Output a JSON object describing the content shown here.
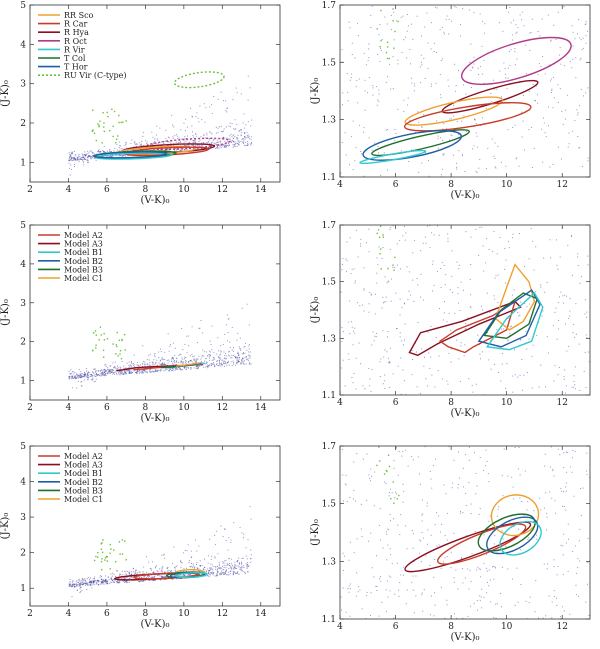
{
  "chart_data": [
    {
      "panel": "top-left",
      "type": "scatter",
      "xlim": [
        2,
        15
      ],
      "ylim": [
        0.5,
        5
      ],
      "xticks": [
        2,
        4,
        6,
        8,
        10,
        12,
        14
      ],
      "yticks": [
        1,
        2,
        3,
        4,
        5
      ],
      "xlabel": "(V-K)₀",
      "ylabel": "(J-K)₀",
      "legend": {
        "placement": "top-left",
        "entries": [
          {
            "label": "RR Sco",
            "color": "#f0a030",
            "dash": false
          },
          {
            "label": "R Car",
            "color": "#c83c2a",
            "dash": false
          },
          {
            "label": "R Hya",
            "color": "#8a0f1f",
            "dash": false
          },
          {
            "label": "R Oct",
            "color": "#b33a8a",
            "dash": false
          },
          {
            "label": "R Vir",
            "color": "#33c7cf",
            "dash": false
          },
          {
            "label": "T Col",
            "color": "#1f6f2f",
            "dash": false
          },
          {
            "label": "T Hor",
            "color": "#1f5fa8",
            "dash": false
          },
          {
            "label": "RU Vir (C-type)",
            "color": "#6ec13a",
            "dash": true
          }
        ]
      },
      "ellipses": [
        {
          "name": "RU Vir",
          "cx": 10.8,
          "cy": 3.1,
          "rx": 1.3,
          "ry": 0.18,
          "angle": 8,
          "color": "#6ec13a",
          "dash": true
        },
        {
          "name": "R Oct",
          "cx": 10.2,
          "cy": 1.47,
          "rx": 2.2,
          "ry": 0.12,
          "angle": 4,
          "color": "#b33a8a",
          "dash": true
        },
        {
          "name": "R Hya",
          "cx": 9.2,
          "cy": 1.35,
          "rx": 2.4,
          "ry": 0.1,
          "angle": 3,
          "color": "#8a0f1f",
          "dash": false
        },
        {
          "name": "RR Sco",
          "cx": 8.6,
          "cy": 1.3,
          "rx": 2.0,
          "ry": 0.09,
          "angle": 3,
          "color": "#f0a030",
          "dash": false
        },
        {
          "name": "R Car",
          "cx": 9.1,
          "cy": 1.28,
          "rx": 2.2,
          "ry": 0.09,
          "angle": 3,
          "color": "#c83c2a",
          "dash": false
        },
        {
          "name": "T Col",
          "cx": 7.5,
          "cy": 1.2,
          "rx": 2.1,
          "ry": 0.08,
          "angle": 2,
          "color": "#1f6f2f",
          "dash": false
        },
        {
          "name": "R Vir",
          "cx": 7.4,
          "cy": 1.16,
          "rx": 2.0,
          "ry": 0.07,
          "angle": 2,
          "color": "#33c7cf",
          "dash": false
        },
        {
          "name": "T Hor",
          "cx": 7.2,
          "cy": 1.19,
          "rx": 1.9,
          "ry": 0.07,
          "angle": 2,
          "color": "#1f5fa8",
          "dash": false
        }
      ]
    },
    {
      "panel": "top-right",
      "type": "scatter",
      "xlim": [
        4,
        13
      ],
      "ylim": [
        1.1,
        1.7
      ],
      "xticks": [
        4,
        6,
        8,
        10,
        12
      ],
      "yticks": [
        1.1,
        1.3,
        1.5,
        1.7
      ],
      "xlabel": "(V-K)₀",
      "ylabel": "(J-K)₀",
      "ellipses": [
        {
          "name": "R Oct",
          "cx": 10.35,
          "cy": 1.505,
          "rx": 2.05,
          "ry": 0.06,
          "angle": 17,
          "color": "#b33a8a",
          "dash": false
        },
        {
          "name": "R Hya",
          "cx": 9.4,
          "cy": 1.38,
          "rx": 1.8,
          "ry": 0.025,
          "angle": 17,
          "color": "#8a0f1f",
          "dash": false
        },
        {
          "name": "RR Sco",
          "cx": 8.1,
          "cy": 1.33,
          "rx": 1.8,
          "ry": 0.03,
          "angle": 13,
          "color": "#f0a030",
          "dash": false
        },
        {
          "name": "R Car",
          "cx": 8.6,
          "cy": 1.31,
          "rx": 2.3,
          "ry": 0.035,
          "angle": 9,
          "color": "#c83c2a",
          "dash": false
        },
        {
          "name": "T Col",
          "cx": 6.9,
          "cy": 1.22,
          "rx": 1.8,
          "ry": 0.022,
          "angle": 13,
          "color": "#1f6f2f",
          "dash": false
        },
        {
          "name": "T Hor",
          "cx": 6.6,
          "cy": 1.21,
          "rx": 1.8,
          "ry": 0.04,
          "angle": 11,
          "color": "#1f5fa8",
          "dash": false
        },
        {
          "name": "R Vir",
          "cx": 5.9,
          "cy": 1.17,
          "rx": 1.2,
          "ry": 0.01,
          "angle": 10,
          "color": "#33c7cf",
          "dash": false
        }
      ]
    },
    {
      "panel": "middle-left",
      "type": "scatter",
      "xlim": [
        2,
        15
      ],
      "ylim": [
        0.5,
        5
      ],
      "xticks": [
        2,
        4,
        6,
        8,
        10,
        12,
        14
      ],
      "yticks": [
        1,
        2,
        3,
        4,
        5
      ],
      "xlabel": "(V-K)₀",
      "ylabel": "(J-K)₀",
      "legend": {
        "placement": "top-left",
        "entries": [
          {
            "label": "Model A2",
            "color": "#c83c2a",
            "dash": false
          },
          {
            "label": "Model A3",
            "color": "#8a0f1f",
            "dash": false
          },
          {
            "label": "Model B1",
            "color": "#33c7cf",
            "dash": false
          },
          {
            "label": "Model B2",
            "color": "#1f5fa8",
            "dash": false
          },
          {
            "label": "Model B3",
            "color": "#1f6f2f",
            "dash": false
          },
          {
            "label": "Model C1",
            "color": "#f0a030",
            "dash": false
          }
        ]
      },
      "polylines": [
        {
          "name": "Model A3",
          "color": "#8a0f1f",
          "points": [
            [
              6.5,
              1.25
            ],
            [
              7.5,
              1.33
            ],
            [
              8.5,
              1.36
            ],
            [
              9.5,
              1.38
            ],
            [
              10.5,
              1.4
            ],
            [
              11,
              1.42
            ]
          ]
        },
        {
          "name": "Model A2",
          "color": "#c83c2a",
          "points": [
            [
              7.4,
              1.28
            ],
            [
              8.6,
              1.33
            ],
            [
              9.6,
              1.37
            ],
            [
              10.6,
              1.41
            ]
          ]
        },
        {
          "name": "Model B1",
          "color": "#33c7cf",
          "points": [
            [
              9.0,
              1.32
            ],
            [
              10.0,
              1.38
            ],
            [
              10.8,
              1.42
            ],
            [
              11.1,
              1.45
            ]
          ]
        },
        {
          "name": "Model B2",
          "color": "#1f5fa8",
          "points": [
            [
              9.2,
              1.34
            ],
            [
              10.2,
              1.39
            ],
            [
              10.9,
              1.44
            ]
          ]
        },
        {
          "name": "Model B3",
          "color": "#1f6f2f",
          "points": [
            [
              8.8,
              1.33
            ],
            [
              9.8,
              1.37
            ],
            [
              10.7,
              1.43
            ]
          ]
        },
        {
          "name": "Model C1",
          "color": "#f0a030",
          "points": [
            [
              9.6,
              1.37
            ],
            [
              10.4,
              1.42
            ],
            [
              10.9,
              1.46
            ]
          ]
        }
      ]
    },
    {
      "panel": "middle-right",
      "type": "scatter",
      "xlim": [
        4,
        13
      ],
      "ylim": [
        1.1,
        1.7
      ],
      "xticks": [
        4,
        6,
        8,
        10,
        12
      ],
      "yticks": [
        1.1,
        1.3,
        1.5,
        1.7
      ],
      "xlabel": "(V-K)₀",
      "ylabel": "(J-K)₀",
      "polylines": [
        {
          "name": "Model A3",
          "color": "#8a0f1f",
          "closed": true,
          "points": [
            [
              6.5,
              1.25
            ],
            [
              6.9,
              1.32
            ],
            [
              8.4,
              1.36
            ],
            [
              10.3,
              1.43
            ],
            [
              10.5,
              1.41
            ],
            [
              9.0,
              1.35
            ],
            [
              7.5,
              1.28
            ],
            [
              6.8,
              1.24
            ]
          ]
        },
        {
          "name": "Model A2",
          "color": "#c83c2a",
          "closed": true,
          "points": [
            [
              7.6,
              1.29
            ],
            [
              8.2,
              1.33
            ],
            [
              9.5,
              1.38
            ],
            [
              10.3,
              1.43
            ],
            [
              10.0,
              1.33
            ],
            [
              8.8,
              1.27
            ],
            [
              8.5,
              1.25
            ],
            [
              7.9,
              1.27
            ]
          ]
        },
        {
          "name": "Model C1",
          "color": "#f0a030",
          "closed": true,
          "points": [
            [
              9.6,
              1.37
            ],
            [
              10.0,
              1.48
            ],
            [
              10.3,
              1.56
            ],
            [
              10.8,
              1.5
            ],
            [
              11.0,
              1.43
            ],
            [
              10.6,
              1.36
            ],
            [
              10.1,
              1.33
            ]
          ]
        },
        {
          "name": "Model B3",
          "color": "#1f6f2f",
          "closed": true,
          "points": [
            [
              9.2,
              1.31
            ],
            [
              9.8,
              1.4
            ],
            [
              10.6,
              1.46
            ],
            [
              11.1,
              1.44
            ],
            [
              10.8,
              1.35
            ],
            [
              10.0,
              1.3
            ]
          ]
        },
        {
          "name": "Model B2",
          "color": "#1f5fa8",
          "closed": true,
          "points": [
            [
              9.0,
              1.29
            ],
            [
              9.7,
              1.39
            ],
            [
              10.9,
              1.47
            ],
            [
              11.2,
              1.42
            ],
            [
              10.7,
              1.31
            ],
            [
              9.8,
              1.27
            ]
          ]
        },
        {
          "name": "Model B1",
          "color": "#33c7cf",
          "closed": true,
          "points": [
            [
              9.3,
              1.27
            ],
            [
              10.0,
              1.37
            ],
            [
              11.0,
              1.46
            ],
            [
              11.3,
              1.41
            ],
            [
              10.9,
              1.29
            ],
            [
              10.1,
              1.26
            ]
          ]
        }
      ]
    },
    {
      "panel": "bottom-left",
      "type": "scatter",
      "xlim": [
        2,
        15
      ],
      "ylim": [
        0.5,
        5
      ],
      "xticks": [
        2,
        4,
        6,
        8,
        10,
        12,
        14
      ],
      "yticks": [
        1,
        2,
        3,
        4,
        5
      ],
      "xlabel": "(V-K)₀",
      "ylabel": "(J-K)₀",
      "legend": {
        "placement": "top-left",
        "entries": [
          {
            "label": "Model A2",
            "color": "#c83c2a",
            "dash": false
          },
          {
            "label": "Model A3",
            "color": "#8a0f1f",
            "dash": false
          },
          {
            "label": "Model B1",
            "color": "#33c7cf",
            "dash": false
          },
          {
            "label": "Model B2",
            "color": "#1f5fa8",
            "dash": false
          },
          {
            "label": "Model B3",
            "color": "#1f6f2f",
            "dash": false
          },
          {
            "label": "Model C1",
            "color": "#f0a030",
            "dash": false
          }
        ]
      },
      "ellipses": [
        {
          "name": "Model A3",
          "cx": 8.6,
          "cy": 1.33,
          "rx": 2.2,
          "ry": 0.07,
          "angle": 3,
          "color": "#8a0f1f",
          "dash": false
        },
        {
          "name": "Model A2",
          "cx": 9.1,
          "cy": 1.35,
          "rx": 1.7,
          "ry": 0.07,
          "angle": 3,
          "color": "#c83c2a",
          "dash": false
        },
        {
          "name": "Model C1",
          "cx": 10.3,
          "cy": 1.42,
          "rx": 0.8,
          "ry": 0.1,
          "angle": 2,
          "color": "#f0a030",
          "dash": false
        },
        {
          "name": "Model B3",
          "cx": 10.1,
          "cy": 1.38,
          "rx": 1.0,
          "ry": 0.07,
          "angle": 3,
          "color": "#1f6f2f",
          "dash": false
        },
        {
          "name": "Model B2",
          "cx": 10.2,
          "cy": 1.37,
          "rx": 0.9,
          "ry": 0.07,
          "angle": 3,
          "color": "#1f5fa8",
          "dash": false
        },
        {
          "name": "Model B1",
          "cx": 10.4,
          "cy": 1.37,
          "rx": 0.8,
          "ry": 0.06,
          "angle": 3,
          "color": "#33c7cf",
          "dash": false
        }
      ]
    },
    {
      "panel": "bottom-right",
      "type": "scatter",
      "xlim": [
        4,
        13
      ],
      "ylim": [
        1.1,
        1.7
      ],
      "xticks": [
        4,
        6,
        8,
        10,
        12
      ],
      "yticks": [
        1.1,
        1.3,
        1.5,
        1.7
      ],
      "xlabel": "(V-K)₀",
      "ylabel": "(J-K)₀",
      "ellipses": [
        {
          "name": "Model A3",
          "cx": 8.6,
          "cy": 1.35,
          "rx": 2.4,
          "ry": 0.035,
          "angle": 20,
          "color": "#8a0f1f",
          "dash": false
        },
        {
          "name": "Model A2",
          "cx": 9.1,
          "cy": 1.36,
          "rx": 1.7,
          "ry": 0.035,
          "angle": 22,
          "color": "#c83c2a",
          "dash": false
        },
        {
          "name": "Model C1",
          "cx": 10.3,
          "cy": 1.46,
          "rx": 0.85,
          "ry": 0.07,
          "angle": 10,
          "color": "#f0a030",
          "dash": false
        },
        {
          "name": "Model B3",
          "cx": 10.0,
          "cy": 1.4,
          "rx": 1.1,
          "ry": 0.05,
          "angle": 25,
          "color": "#1f6f2f",
          "dash": false
        },
        {
          "name": "Model B2",
          "cx": 10.2,
          "cy": 1.39,
          "rx": 1.0,
          "ry": 0.05,
          "angle": 28,
          "color": "#1f5fa8",
          "dash": false
        },
        {
          "name": "Model B1",
          "cx": 10.5,
          "cy": 1.38,
          "rx": 0.8,
          "ry": 0.05,
          "angle": 30,
          "color": "#33c7cf",
          "dash": false
        }
      ]
    }
  ]
}
